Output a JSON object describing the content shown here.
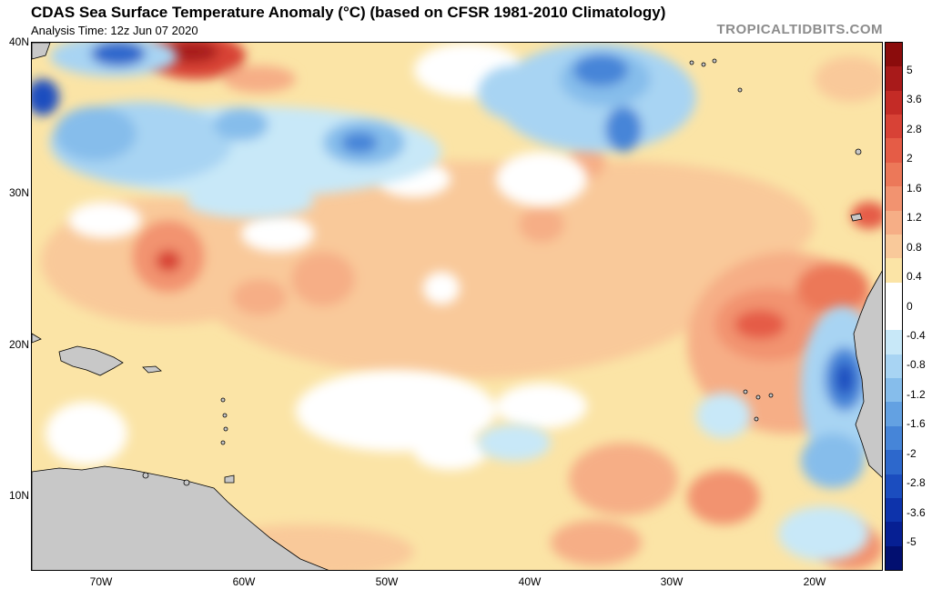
{
  "header": {
    "title": "CDAS Sea Surface Temperature Anomaly (°C) (based on CFSR 1981-2010 Climatology)",
    "analysis_time": "Analysis Time: 12z Jun 07 2020",
    "brand": "TROPICALTIDBITS.COM"
  },
  "axes": {
    "lat_labels": [
      "40N",
      "30N",
      "20N",
      "10N"
    ],
    "lon_labels": [
      "70W",
      "60W",
      "50W",
      "40W",
      "30W",
      "20W"
    ]
  },
  "colorbar": {
    "labels": [
      "5",
      "3.6",
      "2.8",
      "2",
      "1.6",
      "1.2",
      "0.8",
      "0.4",
      "0",
      "-0.4",
      "-0.8",
      "-1.2",
      "-1.6",
      "-2",
      "-2.8",
      "-3.6",
      "-5"
    ],
    "colors": [
      "#8b0c0c",
      "#a81a1a",
      "#c42b26",
      "#d84236",
      "#e55c46",
      "#ec7859",
      "#f29370",
      "#f6ae86",
      "#f9c99a",
      "#fbe4a6",
      "#ffffff",
      "#ffffff",
      "#c8e8f8",
      "#a8d4f3",
      "#86bdeb",
      "#63a1e2",
      "#4685d8",
      "#2d68cc",
      "#1b4dbf",
      "#0d33ab",
      "#061f93",
      "#020f70"
    ]
  },
  "map": {
    "land_color": "#c8c8c8",
    "ocean_base_color": "#fbe4a6"
  }
}
